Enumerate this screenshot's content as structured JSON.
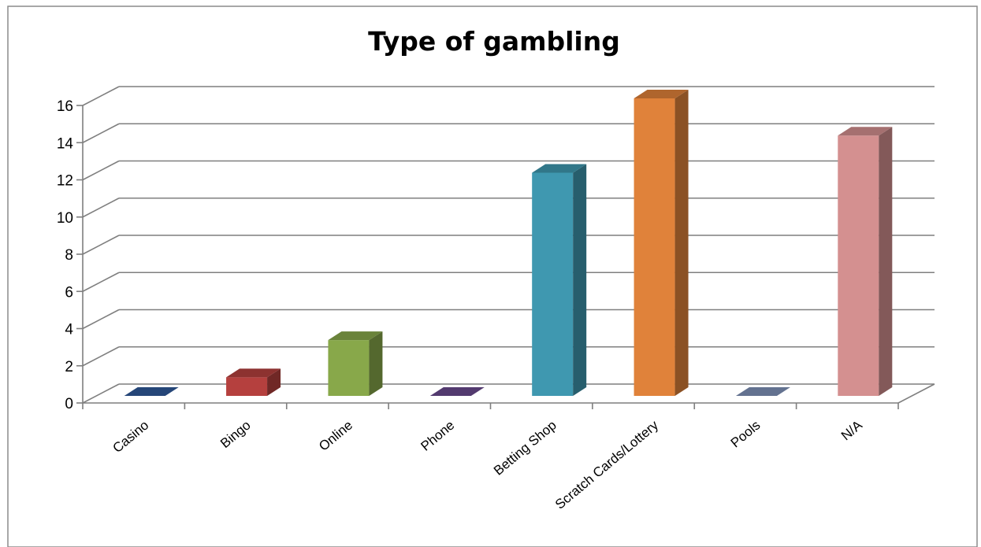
{
  "chart_data": {
    "type": "bar",
    "title": "Type of gambling",
    "xlabel": "",
    "ylabel": "",
    "categories": [
      "Casino",
      "Bingo",
      "Online",
      "Phone",
      "Betting Shop",
      "Scratch Cards/Lottery",
      "Pools",
      "N/A"
    ],
    "values": [
      0,
      1,
      3,
      0,
      12,
      16,
      0,
      14
    ],
    "ylim": [
      0,
      16
    ],
    "yticks": [
      "0",
      "2",
      "4",
      "6",
      "8",
      "10",
      "12",
      "14",
      "16"
    ],
    "grid": true,
    "legend": "none",
    "style": "3d-column",
    "colors": [
      "#2F5A9A",
      "#B5403E",
      "#88A84A",
      "#6A4A8E",
      "#3F98B0",
      "#E0823A",
      "#7F92B8",
      "#D49090"
    ]
  }
}
